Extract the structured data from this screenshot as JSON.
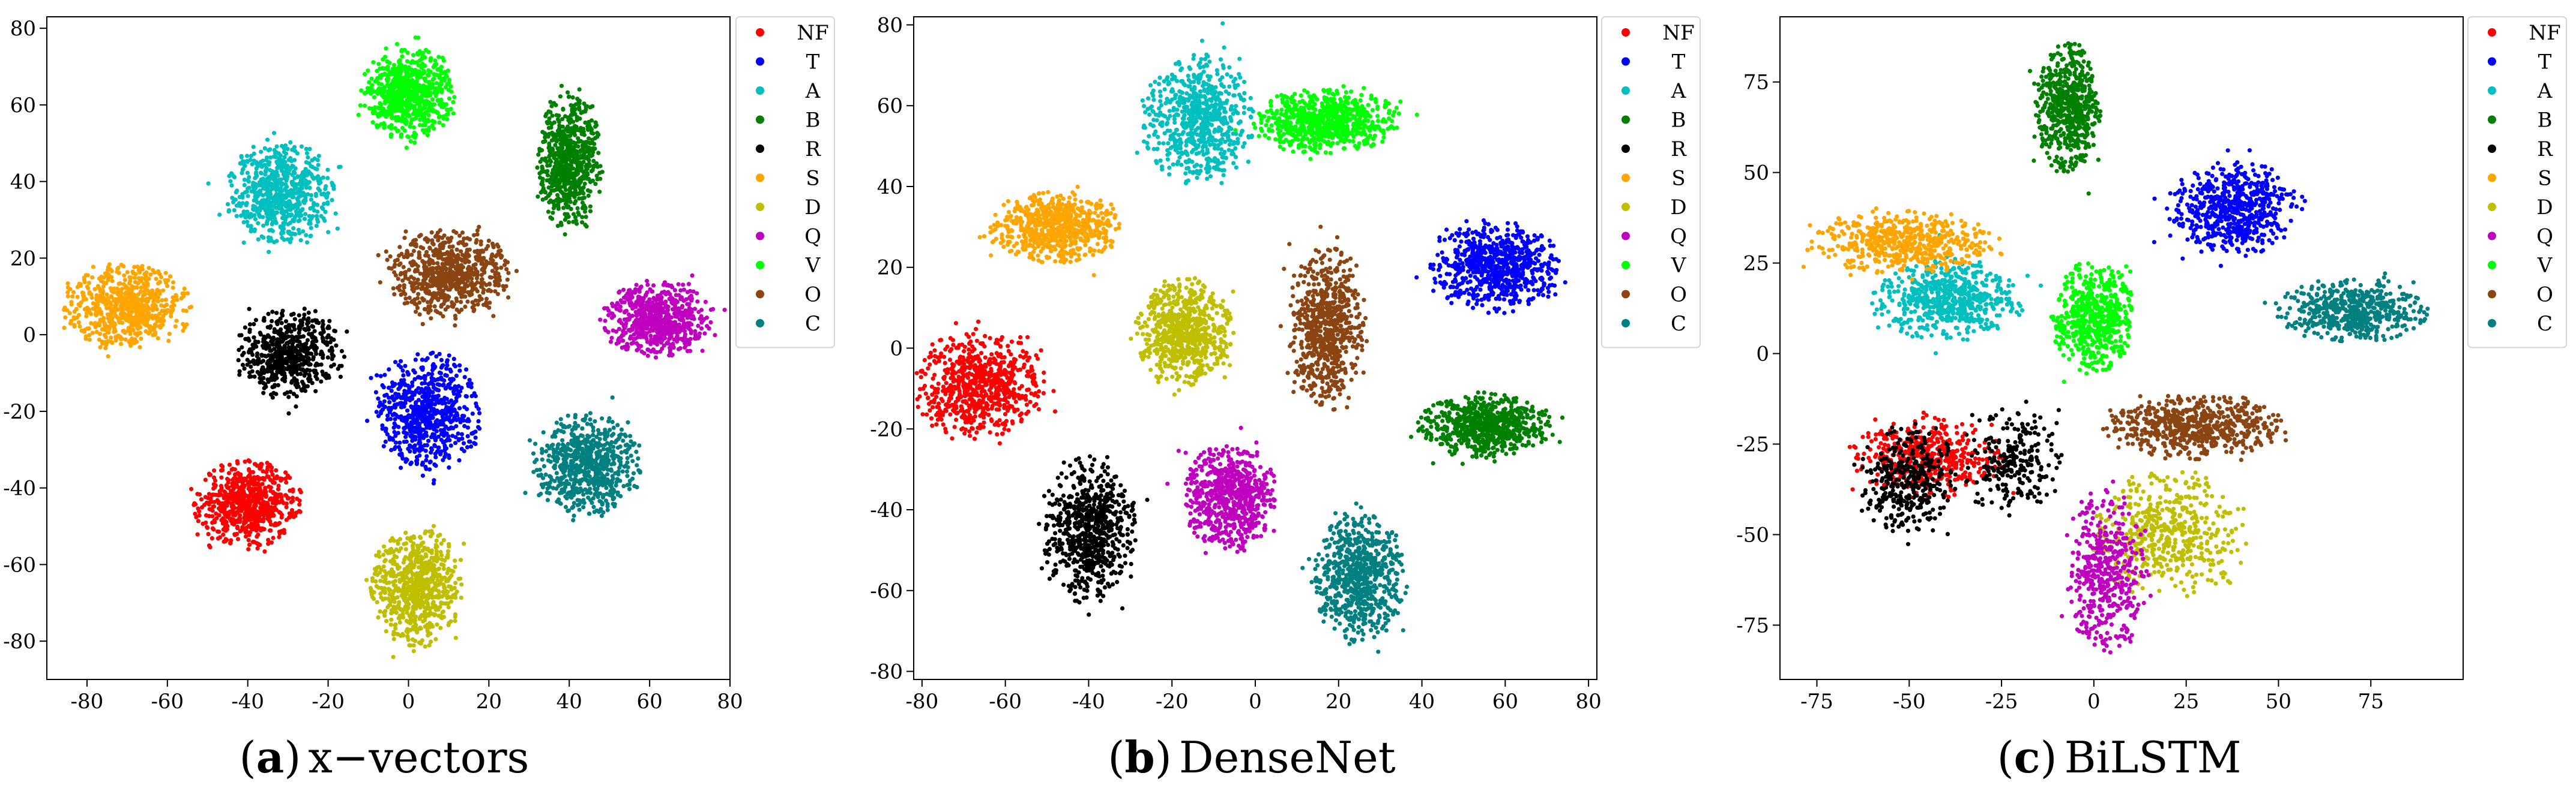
{
  "chart_data": [
    {
      "type": "scatter",
      "title": "",
      "xlabel": "",
      "ylabel": "",
      "caption": {
        "prefix": "(",
        "letter": "a",
        "suffix": ")",
        "text": "x−vectors"
      },
      "xlim": [
        -90,
        80
      ],
      "ylim": [
        -90,
        83
      ],
      "xticks": [
        "-80",
        "-60",
        "-40",
        "-20",
        "0",
        "20",
        "40",
        "60",
        "80"
      ],
      "yticks": [
        "-80",
        "-60",
        "-40",
        "-20",
        "0",
        "20",
        "40",
        "60",
        "80"
      ],
      "grid": false,
      "legend_position": "right-outside",
      "series": [
        {
          "name": "NF",
          "color": "#ff0000",
          "clusters": [
            {
              "cx": -40,
              "cy": -44,
              "sx": 6,
              "sy": 5,
              "n": 700
            }
          ]
        },
        {
          "name": "T",
          "color": "#0000ff",
          "clusters": [
            {
              "cx": 5,
              "cy": -20,
              "sx": 6,
              "sy": 7,
              "n": 700
            }
          ]
        },
        {
          "name": "A",
          "color": "#00bfbf",
          "clusters": [
            {
              "cx": -32,
              "cy": 37,
              "sx": 6,
              "sy": 6,
              "n": 700
            }
          ]
        },
        {
          "name": "B",
          "color": "#008000",
          "clusters": [
            {
              "cx": 40,
              "cy": 45,
              "sx": 3.5,
              "sy": 8,
              "n": 700
            }
          ]
        },
        {
          "name": "R",
          "color": "#000000",
          "clusters": [
            {
              "cx": -30,
              "cy": -5,
              "sx": 6,
              "sy": 5,
              "n": 600
            }
          ]
        },
        {
          "name": "S",
          "color": "#ffa500",
          "clusters": [
            {
              "cx": -70,
              "cy": 7,
              "sx": 7,
              "sy": 5,
              "n": 700
            }
          ]
        },
        {
          "name": "D",
          "color": "#bfbf00",
          "clusters": [
            {
              "cx": 2,
              "cy": -66,
              "sx": 5,
              "sy": 7,
              "n": 700
            }
          ]
        },
        {
          "name": "Q",
          "color": "#bf00bf",
          "clusters": [
            {
              "cx": 62,
              "cy": 4,
              "sx": 6,
              "sy": 4.5,
              "n": 700
            }
          ]
        },
        {
          "name": "V",
          "color": "#00ff00",
          "clusters": [
            {
              "cx": 0,
              "cy": 63,
              "sx": 5,
              "sy": 5.5,
              "n": 700
            }
          ]
        },
        {
          "name": "O",
          "color": "#8b4513",
          "clusters": [
            {
              "cx": 10,
              "cy": 16,
              "sx": 7,
              "sy": 5,
              "n": 700
            }
          ]
        },
        {
          "name": "C",
          "color": "#008080",
          "clusters": [
            {
              "cx": 44,
              "cy": -34,
              "sx": 6,
              "sy": 6,
              "n": 700
            }
          ]
        }
      ]
    },
    {
      "type": "scatter",
      "title": "",
      "xlabel": "",
      "ylabel": "",
      "caption": {
        "prefix": "(",
        "letter": "b",
        "suffix": ")",
        "text": "DenseNet"
      },
      "xlim": [
        -82,
        82
      ],
      "ylim": [
        -82,
        82
      ],
      "xticks": [
        "-80",
        "-60",
        "-40",
        "-20",
        "0",
        "20",
        "40",
        "60",
        "80"
      ],
      "yticks": [
        "-80",
        "-60",
        "-40",
        "-20",
        "0",
        "20",
        "40",
        "60",
        "80"
      ],
      "grid": false,
      "legend_position": "right-outside",
      "series": [
        {
          "name": "NF",
          "color": "#ff0000",
          "clusters": [
            {
              "cx": -66,
              "cy": -9,
              "sx": 7,
              "sy": 6,
              "n": 700
            }
          ]
        },
        {
          "name": "T",
          "color": "#0000ff",
          "clusters": [
            {
              "cx": 58,
              "cy": 20,
              "sx": 7,
              "sy": 5,
              "n": 700
            }
          ]
        },
        {
          "name": "A",
          "color": "#00bfbf",
          "clusters": [
            {
              "cx": -14,
              "cy": 57,
              "sx": 6,
              "sy": 7,
              "n": 700
            }
          ]
        },
        {
          "name": "B",
          "color": "#008000",
          "clusters": [
            {
              "cx": 55,
              "cy": -19,
              "sx": 7,
              "sy": 3.5,
              "n": 700
            }
          ]
        },
        {
          "name": "R",
          "color": "#000000",
          "clusters": [
            {
              "cx": -40,
              "cy": -45,
              "sx": 5,
              "sy": 8,
              "n": 700
            }
          ]
        },
        {
          "name": "S",
          "color": "#ffa500",
          "clusters": [
            {
              "cx": -48,
              "cy": 30,
              "sx": 7,
              "sy": 4,
              "n": 700
            }
          ]
        },
        {
          "name": "D",
          "color": "#bfbf00",
          "clusters": [
            {
              "cx": -17,
              "cy": 4,
              "sx": 5,
              "sy": 6,
              "n": 700
            }
          ]
        },
        {
          "name": "Q",
          "color": "#bf00bf",
          "clusters": [
            {
              "cx": -6,
              "cy": -37,
              "sx": 5,
              "sy": 6,
              "n": 700
            }
          ]
        },
        {
          "name": "V",
          "color": "#00ff00",
          "clusters": [
            {
              "cx": 17,
              "cy": 56,
              "sx": 8,
              "sy": 3.5,
              "n": 700
            }
          ]
        },
        {
          "name": "O",
          "color": "#8b4513",
          "clusters": [
            {
              "cx": 17,
              "cy": 5,
              "sx": 4,
              "sy": 9,
              "n": 700
            }
          ]
        },
        {
          "name": "C",
          "color": "#008080",
          "clusters": [
            {
              "cx": 25,
              "cy": -57,
              "sx": 5,
              "sy": 7,
              "n": 700
            }
          ]
        }
      ]
    },
    {
      "type": "scatter",
      "title": "",
      "xlabel": "",
      "ylabel": "",
      "caption": {
        "prefix": "(",
        "letter": "c",
        "suffix": ")",
        "text": "BiLSTM"
      },
      "xlim": [
        -85,
        100
      ],
      "ylim": [
        -90,
        93
      ],
      "xticks": [
        "-75",
        "-50",
        "-25",
        "0",
        "25",
        "50",
        "75"
      ],
      "yticks": [
        "-75",
        "-50",
        "-25",
        "0",
        "25",
        "50",
        "75"
      ],
      "grid": false,
      "legend_position": "right-outside",
      "series": [
        {
          "name": "NF",
          "color": "#ff0000",
          "clusters": [
            {
              "cx": -45,
              "cy": -29,
              "sx": 9,
              "sy": 5,
              "n": 500
            }
          ]
        },
        {
          "name": "T",
          "color": "#0000ff",
          "clusters": [
            {
              "cx": 38,
              "cy": 40,
              "sx": 8,
              "sy": 6,
              "n": 600
            }
          ]
        },
        {
          "name": "A",
          "color": "#00bfbf",
          "clusters": [
            {
              "cx": -40,
              "cy": 15,
              "sx": 9,
              "sy": 5,
              "n": 600
            }
          ]
        },
        {
          "name": "B",
          "color": "#008000",
          "clusters": [
            {
              "cx": -7,
              "cy": 68,
              "sx": 4,
              "sy": 8,
              "n": 600
            }
          ]
        },
        {
          "name": "R",
          "color": "#000000",
          "clusters": [
            {
              "cx": -50,
              "cy": -35,
              "sx": 6,
              "sy": 7,
              "n": 350
            },
            {
              "cx": -22,
              "cy": -30,
              "sx": 6,
              "sy": 7,
              "n": 250
            }
          ]
        },
        {
          "name": "S",
          "color": "#ffa500",
          "clusters": [
            {
              "cx": -52,
              "cy": 31,
              "sx": 11,
              "sy": 4,
              "n": 550
            }
          ]
        },
        {
          "name": "D",
          "color": "#bfbf00",
          "clusters": [
            {
              "cx": 20,
              "cy": -50,
              "sx": 9,
              "sy": 8,
              "n": 500
            }
          ]
        },
        {
          "name": "Q",
          "color": "#bf00bf",
          "clusters": [
            {
              "cx": 3,
              "cy": -60,
              "sx": 5,
              "sy": 10,
              "n": 450
            }
          ]
        },
        {
          "name": "V",
          "color": "#00ff00",
          "clusters": [
            {
              "cx": 0,
              "cy": 10,
              "sx": 5,
              "sy": 7,
              "n": 550
            }
          ]
        },
        {
          "name": "O",
          "color": "#8b4513",
          "clusters": [
            {
              "cx": 28,
              "cy": -20,
              "sx": 11,
              "sy": 4,
              "n": 600
            }
          ]
        },
        {
          "name": "C",
          "color": "#008080",
          "clusters": [
            {
              "cx": 70,
              "cy": 12,
              "sx": 9,
              "sy": 4,
              "n": 550
            }
          ]
        }
      ]
    }
  ]
}
